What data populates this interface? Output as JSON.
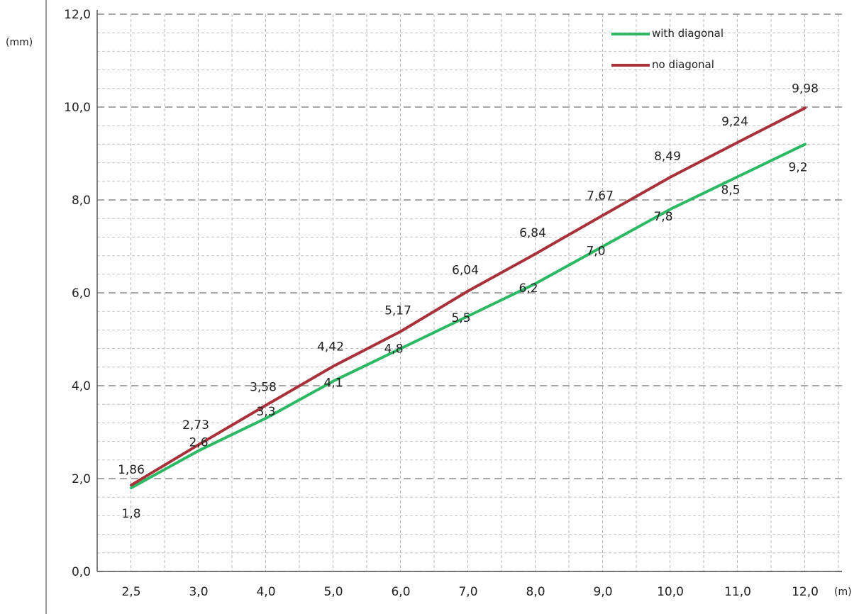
{
  "chart_data": {
    "type": "line",
    "categories": [
      "2,5",
      "3,0",
      "4,0",
      "5,0",
      "6,0",
      "7,0",
      "8,0",
      "9,0",
      "10,0",
      "11,0",
      "12,0"
    ],
    "x_unit": "(m)",
    "y_unit": "(mm)",
    "y_ticks": [
      "0,0",
      "2,0",
      "4,0",
      "6,0",
      "8,0",
      "10,0",
      "12,0"
    ],
    "ylim": [
      0,
      12
    ],
    "grid": true,
    "legend_position": "top-right",
    "series": [
      {
        "name": "with diagonal",
        "color": "#2db864",
        "values": [
          1.8,
          2.6,
          3.3,
          4.1,
          4.8,
          5.5,
          6.2,
          7.0,
          7.8,
          8.5,
          9.2
        ],
        "labels": [
          "1,8",
          "2,6",
          "3,3",
          "4,1",
          "4,8",
          "5,5",
          "6,2",
          "7,0",
          "7,8",
          "8,5",
          "9,2"
        ]
      },
      {
        "name": "no diagonal",
        "color": "#a8323a",
        "values": [
          1.86,
          2.73,
          3.58,
          4.42,
          5.17,
          6.04,
          6.84,
          7.67,
          8.49,
          9.24,
          9.98
        ],
        "labels": [
          "1,86",
          "2,73",
          "3,58",
          "4,42",
          "5,17",
          "6,04",
          "6,84",
          "7,67",
          "8,49",
          "9,24",
          "9,98"
        ]
      }
    ]
  }
}
